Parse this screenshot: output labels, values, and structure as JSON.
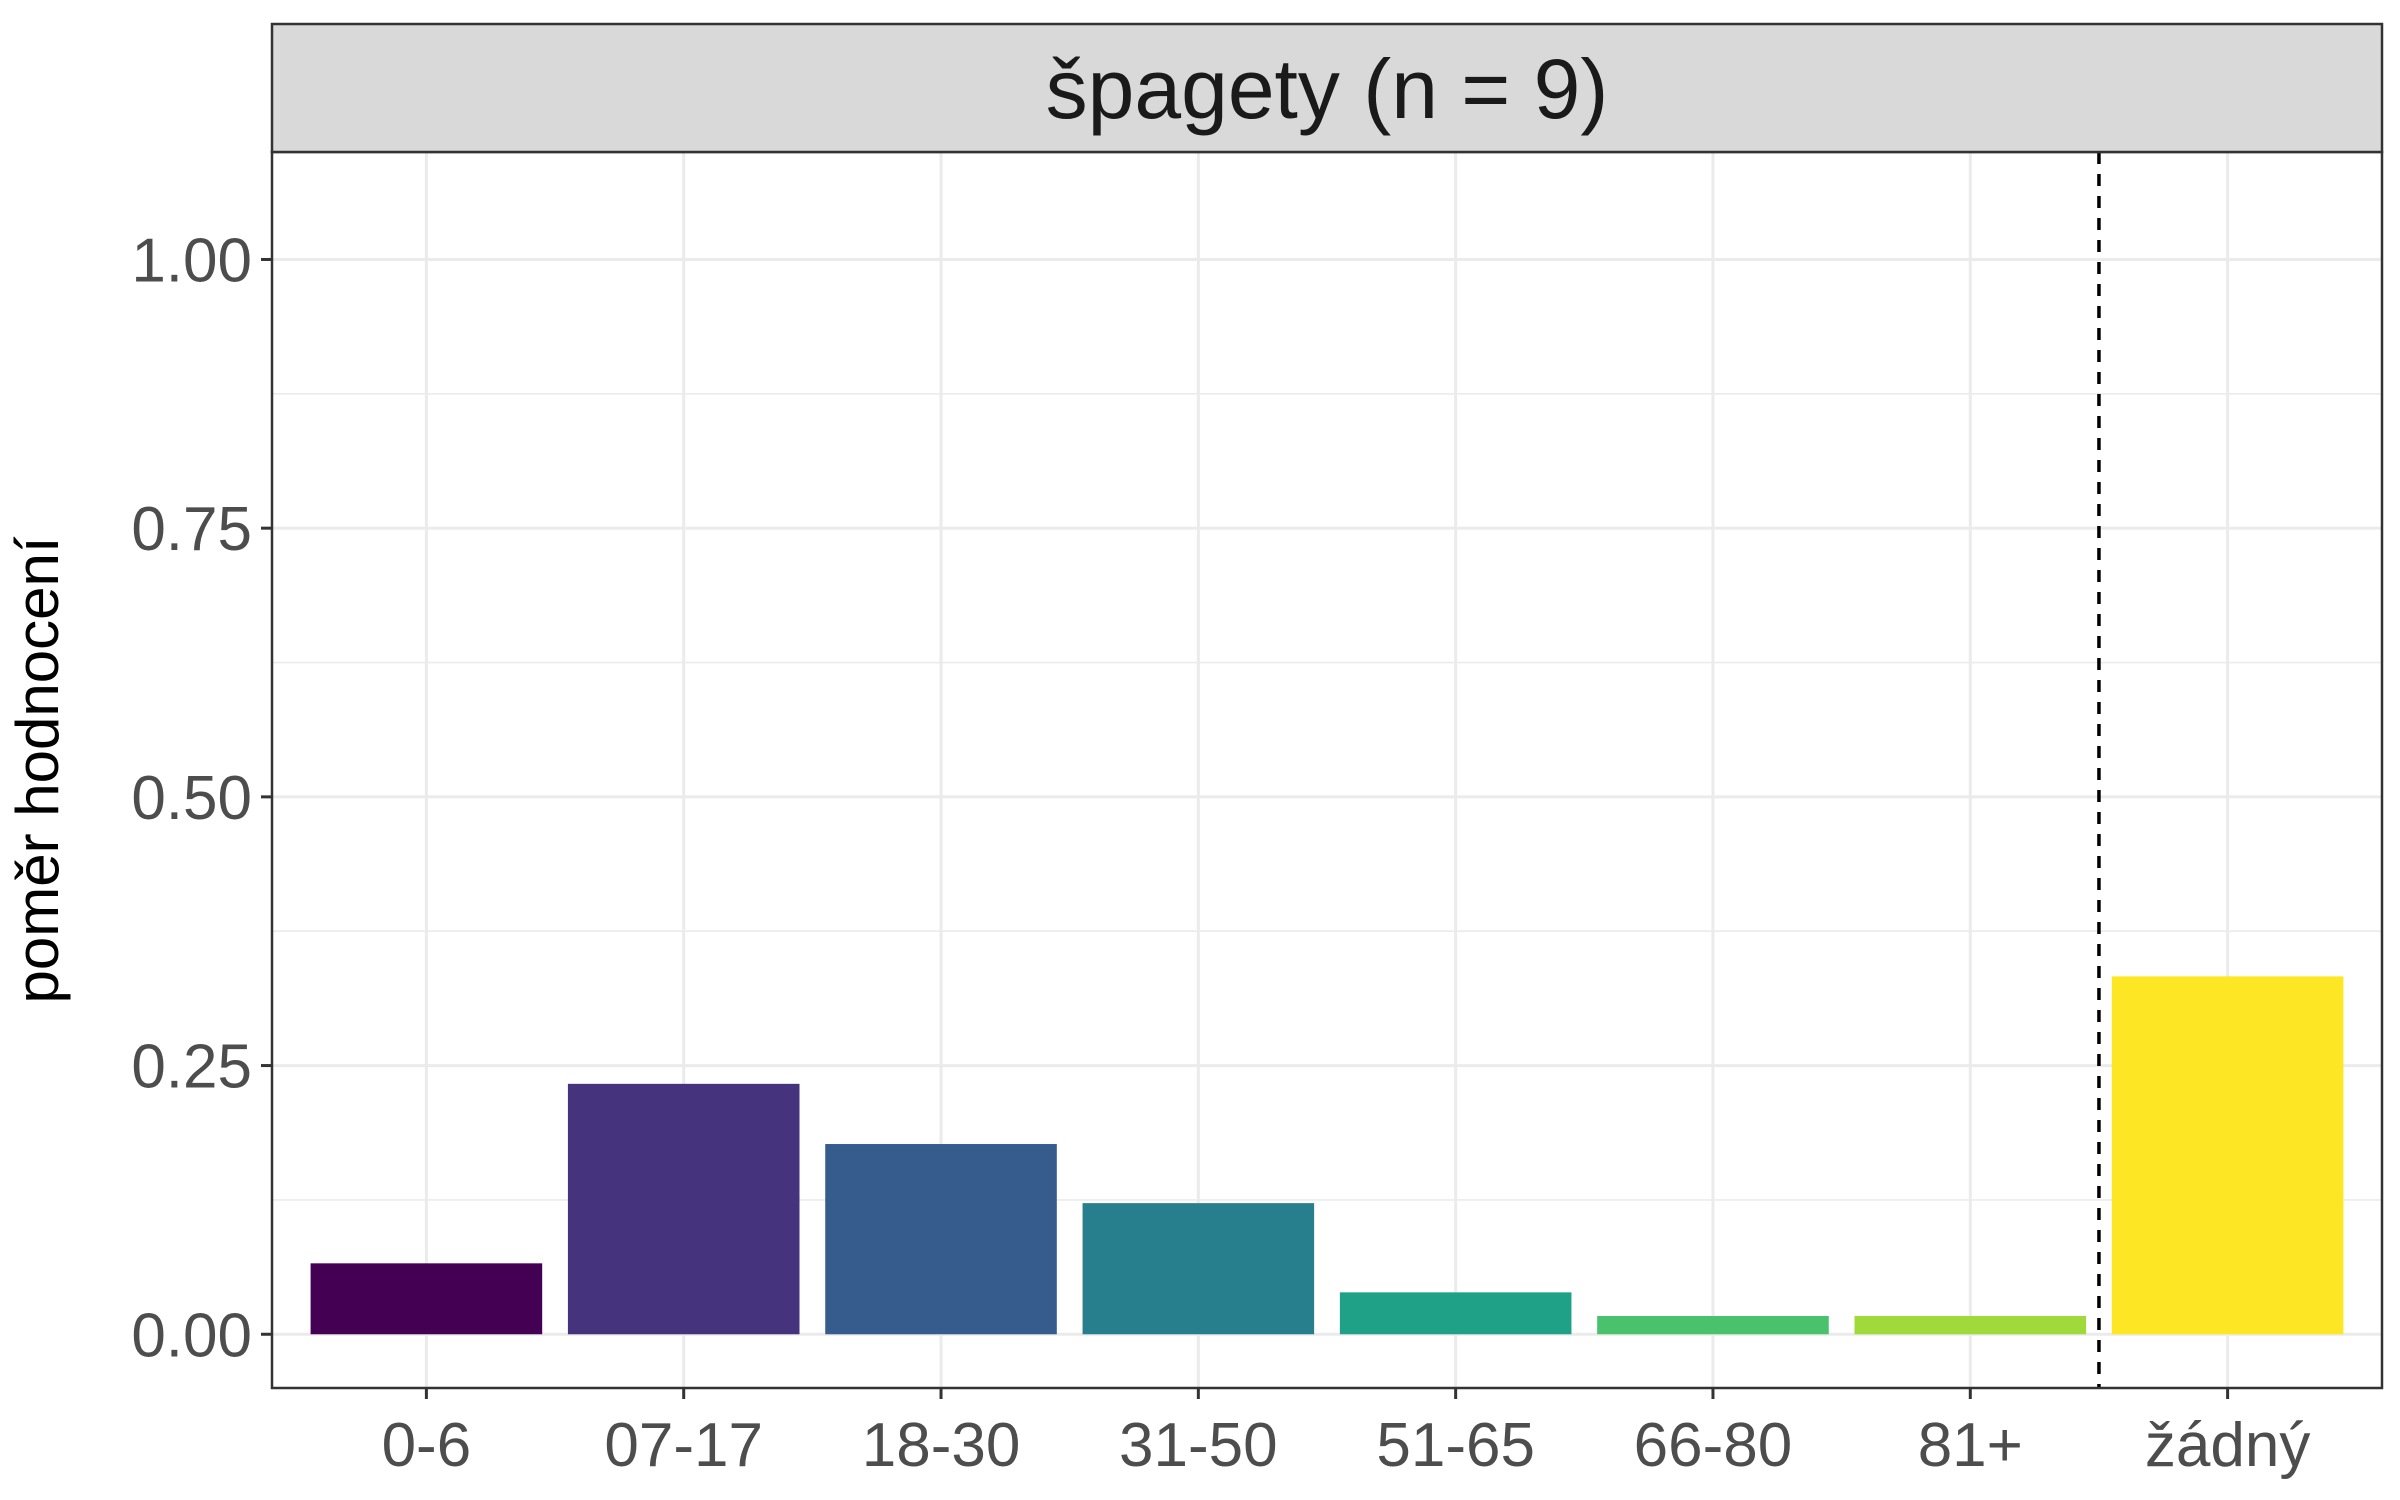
{
  "chart_data": {
    "type": "bar",
    "facet_title": "špagety (n = 9)",
    "categories": [
      "0-6",
      "07-17",
      "18-30",
      "31-50",
      "51-65",
      "66-80",
      "81+",
      "žádný"
    ],
    "values": [
      0.066,
      0.233,
      0.177,
      0.122,
      0.039,
      0.017,
      0.017,
      0.333
    ],
    "colors": [
      "#440154",
      "#46337E",
      "#365C8D",
      "#277F8E",
      "#1FA187",
      "#4AC16D",
      "#9FDA3A",
      "#FDE725"
    ],
    "xlabel": "",
    "ylabel": "poměr hodnocení",
    "ylim": [
      -0.05,
      1.1
    ],
    "yticks": [
      0,
      0.25,
      0.5,
      0.75,
      1.0
    ],
    "ytick_labels": [
      "0.00",
      "0.25",
      "0.50",
      "0.75",
      "1.00"
    ],
    "grid": true,
    "theme": "bw",
    "separator": "dashed vertical line between 81+ and žádný"
  }
}
